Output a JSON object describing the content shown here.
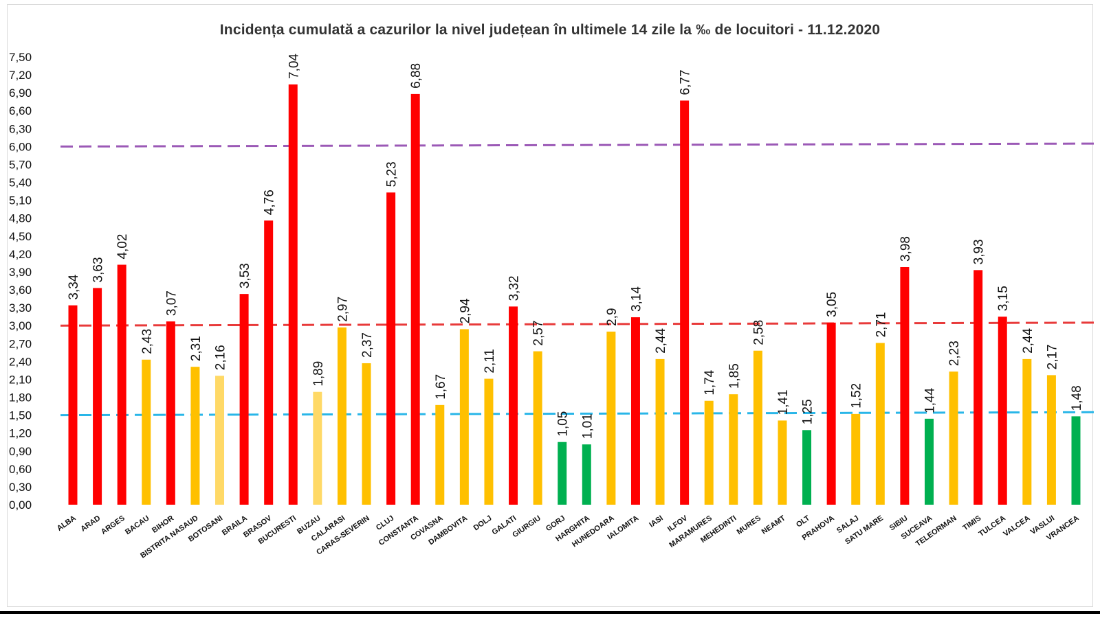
{
  "chart_data": {
    "type": "bar",
    "title": "Incidența cumulată a cazurilor la nivel județean în ultimele 14 zile la ‰ de locuitori - 11.12.2020",
    "xlabel": "",
    "ylabel": "",
    "ylim": [
      0,
      7.5
    ],
    "yticks": [
      "0,00",
      "0,30",
      "0,60",
      "0,90",
      "1,20",
      "1,50",
      "1,80",
      "2,10",
      "2,40",
      "2,70",
      "3,00",
      "3,30",
      "3,60",
      "3,90",
      "4,20",
      "4,50",
      "4,80",
      "5,10",
      "5,40",
      "5,70",
      "6,00",
      "6,30",
      "6,60",
      "6,90",
      "7,20",
      "7,50"
    ],
    "grid": false,
    "legend": "none",
    "categories": [
      "ALBA",
      "ARAD",
      "ARGES",
      "BACAU",
      "BIHOR",
      "BISTRITA NASAUD",
      "BOTOSANI",
      "BRAILA",
      "BRASOV",
      "BUCURESTI",
      "BUZAU",
      "CALARASI",
      "CARAS-SEVERIN",
      "CLUJ",
      "CONSTANTA",
      "COVASNA",
      "DAMBOVITA",
      "DOLJ",
      "GALATI",
      "GIURGIU",
      "GORJ",
      "HARGHITA",
      "HUNEDOARA",
      "IALOMITA",
      "IASI",
      "ILFOV",
      "MARAMURES",
      "MEHEDINTI",
      "MURES",
      "NEAMT",
      "OLT",
      "PRAHOVA",
      "SALAJ",
      "SATU MARE",
      "SIBIU",
      "SUCEAVA",
      "TELEORMAN",
      "TIMIS",
      "TULCEA",
      "VALCEA",
      "VASLUI",
      "VRANCEA"
    ],
    "values": [
      3.34,
      3.63,
      4.02,
      2.43,
      3.07,
      2.31,
      2.16,
      3.53,
      4.76,
      7.04,
      1.89,
      2.97,
      2.37,
      5.23,
      6.88,
      1.67,
      2.94,
      2.11,
      3.32,
      2.57,
      1.05,
      1.01,
      2.9,
      3.14,
      2.44,
      6.77,
      1.74,
      1.85,
      2.58,
      1.41,
      1.25,
      3.05,
      1.52,
      2.71,
      3.98,
      1.44,
      2.23,
      3.93,
      3.15,
      2.44,
      2.17,
      1.48
    ],
    "value_labels": [
      "3,34",
      "3,63",
      "4,02",
      "2,43",
      "3,07",
      "2,31",
      "2,16",
      "3,53",
      "4,76",
      "7,04",
      "1,89",
      "2,97",
      "2,37",
      "5,23",
      "6,88",
      "1,67",
      "2,94",
      "2,11",
      "3,32",
      "2,57",
      "1,05",
      "1,01",
      "2,9",
      "3,14",
      "2,44",
      "6,77",
      "1,74",
      "1,85",
      "2,58",
      "1,41",
      "1,25",
      "3,05",
      "1,52",
      "2,71",
      "3,98",
      "1,44",
      "2,23",
      "3,93",
      "3,15",
      "2,44",
      "2,17",
      "1,48"
    ],
    "bar_colors": [
      "#ff0000",
      "#ff0000",
      "#ff0000",
      "#ffc000",
      "#ff0000",
      "#ffc000",
      "#ffd966",
      "#ff0000",
      "#ff0000",
      "#ff0000",
      "#ffd966",
      "#ffc000",
      "#ffc000",
      "#ff0000",
      "#ff0000",
      "#ffc000",
      "#ffc000",
      "#ffc000",
      "#ff0000",
      "#ffc000",
      "#00b050",
      "#00b050",
      "#ffc000",
      "#ff0000",
      "#ffc000",
      "#ff0000",
      "#ffc000",
      "#ffc000",
      "#ffc000",
      "#ffc000",
      "#00b050",
      "#ff0000",
      "#ffc000",
      "#ffc000",
      "#ff0000",
      "#00b050",
      "#ffc000",
      "#ff0000",
      "#ff0000",
      "#ffc000",
      "#ffc000",
      "#00b050"
    ],
    "reference_lines": [
      {
        "value_start": 6.0,
        "value_end": 6.05,
        "color": "#9b59b6"
      },
      {
        "value_start": 3.0,
        "value_end": 3.05,
        "color": "#e83a3a"
      },
      {
        "value_start": 1.5,
        "value_end": 1.55,
        "color": "#29b6e8"
      }
    ]
  }
}
